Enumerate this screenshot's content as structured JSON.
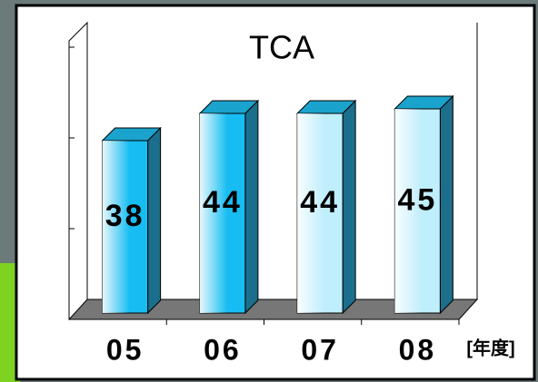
{
  "chart_data": {
    "type": "bar3d",
    "title": "TCA",
    "categories": [
      "05",
      "06",
      "07",
      "08"
    ],
    "x_label": "[年度]",
    "values": [
      38,
      44,
      44,
      45
    ],
    "colors": [
      "#17bdf2",
      "#17bdf2",
      "#bfeefc",
      "#bfeefc"
    ],
    "ylim": [
      0,
      60
    ],
    "yticks": [
      0,
      20,
      40,
      60
    ]
  }
}
